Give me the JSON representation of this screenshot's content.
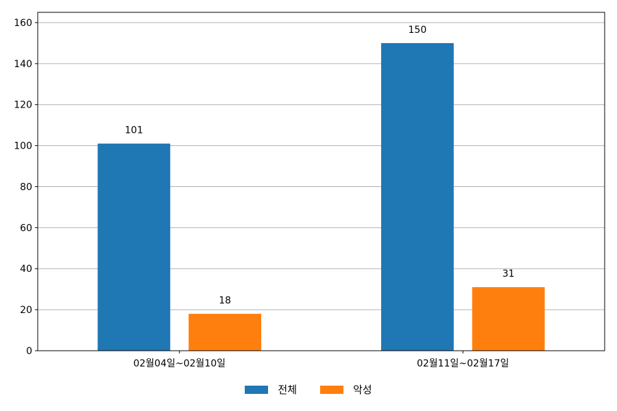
{
  "chart_data": {
    "type": "bar",
    "categories": [
      "02월04일~02월10일",
      "02월11일~02월17일"
    ],
    "series": [
      {
        "name": "전체",
        "values": [
          101,
          150
        ],
        "color": "#1f77b4"
      },
      {
        "name": "악성",
        "values": [
          18,
          31
        ],
        "color": "#ff7f0e"
      }
    ],
    "ylim": [
      0,
      165
    ],
    "yticks": [
      0,
      20,
      40,
      60,
      80,
      100,
      120,
      140,
      160
    ],
    "grid": "horizontal",
    "legend_position": "bottom-center",
    "data_labels": true,
    "title": "",
    "xlabel": "",
    "ylabel": ""
  }
}
